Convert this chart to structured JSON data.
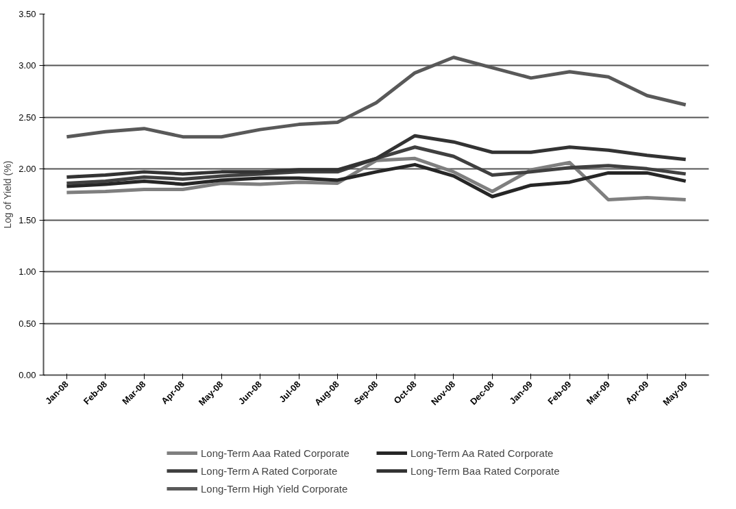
{
  "chart_data": {
    "type": "line",
    "ylabel": "Log of Yield (%)",
    "categories": [
      "Jan-08",
      "Feb-08",
      "Mar-08",
      "Apr-08",
      "May-08",
      "Jun-08",
      "Jul-08",
      "Aug-08",
      "Sep-08",
      "Oct-08",
      "Nov-08",
      "Dec-08",
      "Jan-09",
      "Feb-09",
      "Mar-09",
      "Apr-09",
      "May-09"
    ],
    "series": [
      {
        "name": "Long-Term Aaa Rated Corporate",
        "color": "#7f7f7f",
        "values": [
          1.77,
          1.78,
          1.8,
          1.8,
          1.86,
          1.85,
          1.87,
          1.86,
          2.08,
          2.1,
          1.97,
          1.78,
          1.99,
          2.06,
          1.7,
          1.72,
          1.7
        ]
      },
      {
        "name": "Long-Term Aa Rated Corporate",
        "color": "#262626",
        "values": [
          1.83,
          1.85,
          1.88,
          1.85,
          1.89,
          1.91,
          1.91,
          1.89,
          1.97,
          2.04,
          1.93,
          1.73,
          1.84,
          1.87,
          1.96,
          1.96,
          1.88
        ]
      },
      {
        "name": "Long-Term A Rated Corporate",
        "color": "#404040",
        "values": [
          1.86,
          1.88,
          1.92,
          1.9,
          1.93,
          1.95,
          1.97,
          1.97,
          2.1,
          2.21,
          2.12,
          1.94,
          1.97,
          2.01,
          2.03,
          2.0,
          1.95
        ]
      },
      {
        "name": "Long-Term Baa Rated Corporate",
        "color": "#333333",
        "values": [
          1.92,
          1.94,
          1.97,
          1.95,
          1.97,
          1.97,
          1.99,
          1.99,
          2.1,
          2.32,
          2.26,
          2.16,
          2.16,
          2.21,
          2.18,
          2.13,
          2.09
        ]
      },
      {
        "name": "Long-Term High Yield Corporate",
        "color": "#595959",
        "values": [
          2.31,
          2.36,
          2.39,
          2.31,
          2.31,
          2.38,
          2.43,
          2.45,
          2.64,
          2.93,
          3.08,
          2.98,
          2.88,
          2.94,
          2.89,
          2.71,
          2.62
        ]
      }
    ],
    "ylim": [
      0,
      3.5
    ],
    "yticks": [
      {
        "value": 0,
        "label": "0.00"
      },
      {
        "value": 0.5,
        "label": "0.50"
      },
      {
        "value": 1,
        "label": "1.00"
      },
      {
        "value": 1.5,
        "label": "1.50"
      },
      {
        "value": 2,
        "label": "2.00"
      },
      {
        "value": 2.5,
        "label": "2.50"
      },
      {
        "value": 3,
        "label": "3.00"
      },
      {
        "value": 3.5,
        "label": "3.50"
      }
    ],
    "grid": "y",
    "legend": "bottom",
    "marker": "none",
    "line_style": "solid"
  }
}
